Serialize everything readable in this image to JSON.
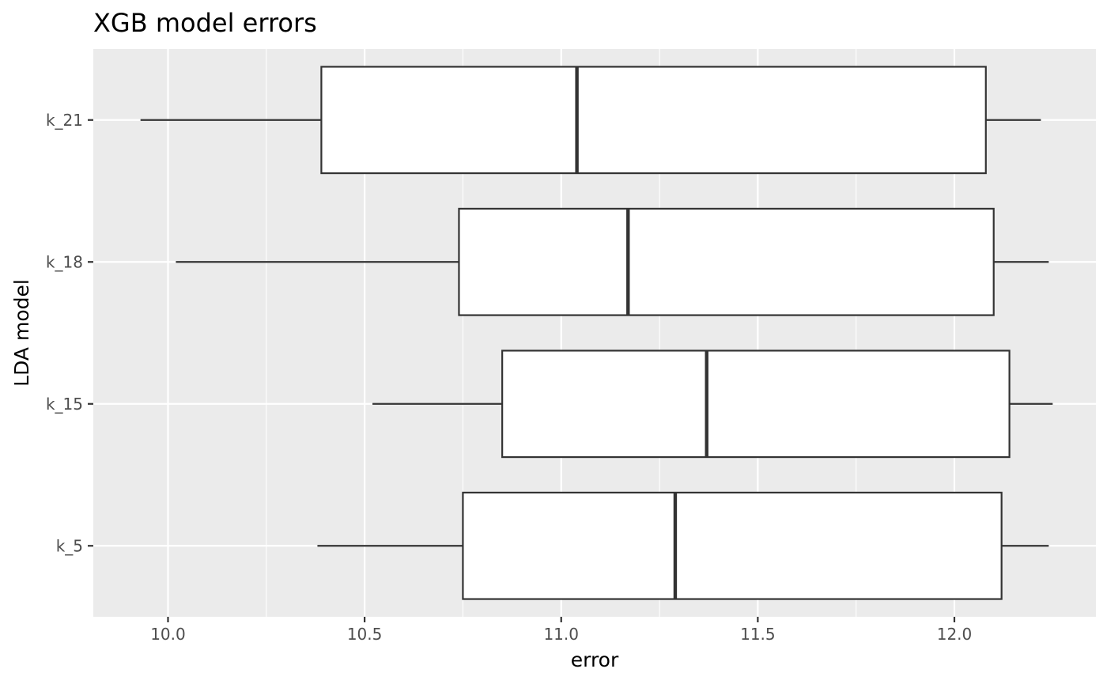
{
  "chart_data": {
    "type": "boxplot",
    "orientation": "horizontal",
    "title": "XGB model errors",
    "xlabel": "error",
    "ylabel": "LDA model",
    "xlim": [
      9.81,
      12.36
    ],
    "x_ticks": [
      10.0,
      10.5,
      11.0,
      11.5,
      12.0
    ],
    "x_tick_labels": [
      "10.0",
      "10.5",
      "11.0",
      "11.5",
      "12.0"
    ],
    "categories": [
      "k_5",
      "k_15",
      "k_18",
      "k_21"
    ],
    "series": [
      {
        "category": "k_5",
        "whisker_low": 10.38,
        "q1": 10.75,
        "median": 11.29,
        "q3": 12.12,
        "whisker_high": 12.24
      },
      {
        "category": "k_15",
        "whisker_low": 10.52,
        "q1": 10.85,
        "median": 11.37,
        "q3": 12.14,
        "whisker_high": 12.25
      },
      {
        "category": "k_18",
        "whisker_low": 10.02,
        "q1": 10.74,
        "median": 11.17,
        "q3": 12.1,
        "whisker_high": 12.24
      },
      {
        "category": "k_21",
        "whisker_low": 9.93,
        "q1": 10.39,
        "median": 11.04,
        "q3": 12.08,
        "whisker_high": 12.22
      }
    ],
    "grid": true,
    "legend": "none",
    "colors": {
      "panel_background": "#ebebeb",
      "grid_major": "#ffffff",
      "box_fill": "#ffffff",
      "box_stroke": "#333333",
      "tick_label": "#4d4d4d",
      "tick_mark": "#333333"
    }
  }
}
